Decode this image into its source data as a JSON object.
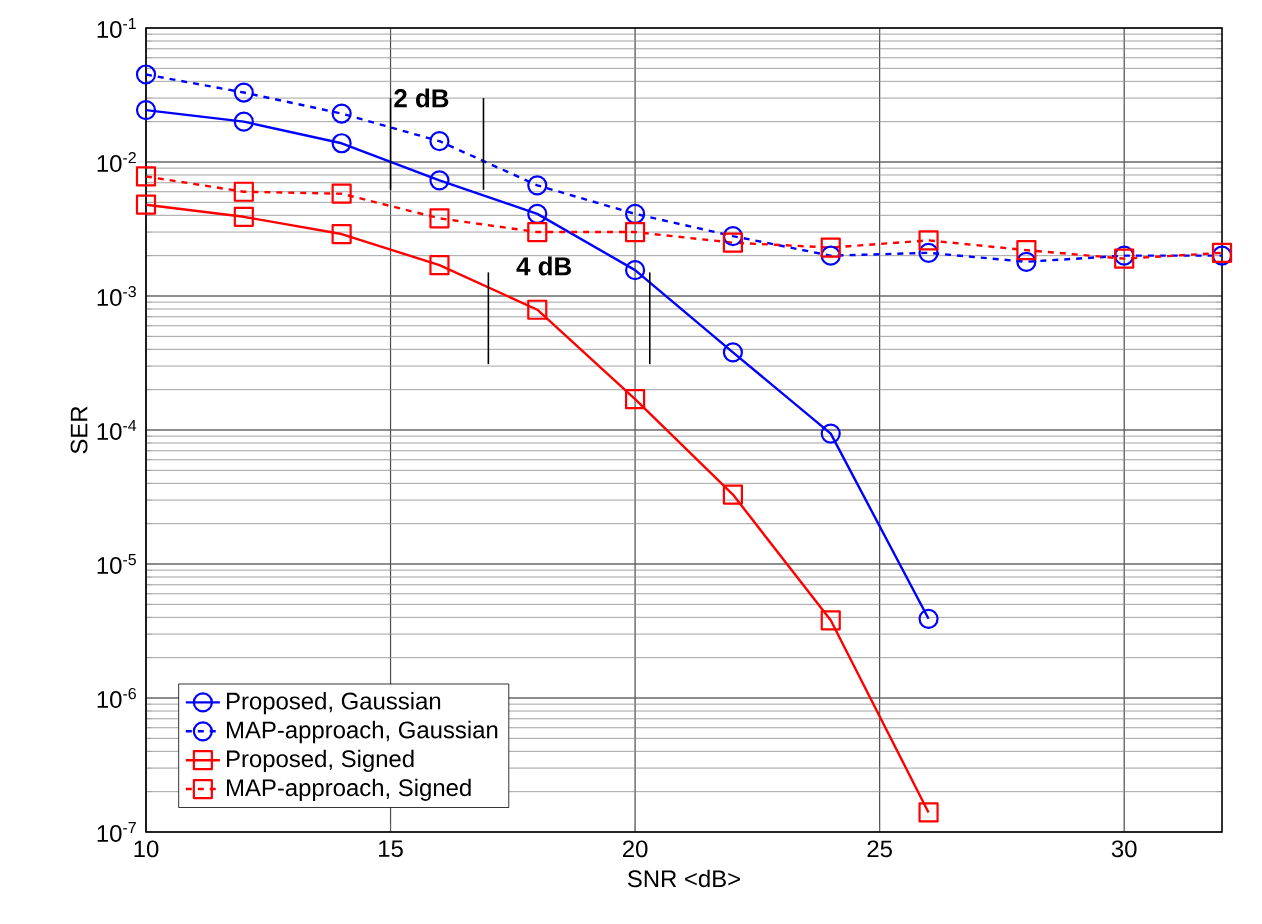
{
  "chart_data": {
    "type": "line",
    "xlabel": "SNR <dB>",
    "ylabel": "SER",
    "log": "y",
    "grid": true,
    "legend": "bottom left",
    "xlim": [
      10,
      32
    ],
    "ylim": [
      1e-07,
      0.1
    ],
    "xticks": [
      10,
      15,
      20,
      25,
      30
    ],
    "yticks": [
      {
        "value": 1e-07,
        "label": "10$^{-7}$"
      },
      {
        "value": 1e-06,
        "label": "10$^{-6}$"
      },
      {
        "value": 1e-05,
        "label": "10$^{-5}$"
      },
      {
        "value": 0.0001,
        "label": "10$^{-4}$"
      },
      {
        "value": 0.001,
        "label": "10$^{-3}$"
      },
      {
        "value": 0.01,
        "label": "10$^{-2}$"
      },
      {
        "value": 0.1,
        "label": "10$^{-1}$"
      }
    ],
    "x": [
      10,
      12,
      14,
      16,
      18,
      20,
      22,
      24,
      26,
      28,
      30,
      32
    ],
    "series": [
      {
        "name": "Proposed, Gaussian",
        "color": "#0000ff",
        "marker": "circle",
        "line_style": "solid",
        "values": [
          0.0244,
          0.02,
          0.0138,
          0.0073,
          0.0041,
          0.00156,
          0.00038,
          9.4e-05,
          3.9e-06,
          null,
          null,
          null
        ]
      },
      {
        "name": "MAP-approach, Gaussian",
        "color": "#0000ff",
        "marker": "circle",
        "line_style": "dashed",
        "values": [
          0.045,
          0.033,
          0.023,
          0.0143,
          0.0067,
          0.0041,
          0.0028,
          0.002,
          0.0021,
          0.0018,
          0.002,
          0.002
        ]
      },
      {
        "name": "Proposed, Signed",
        "color": "#ff0000",
        "marker": "square",
        "line_style": "solid",
        "values": [
          0.0048,
          0.0039,
          0.0029,
          0.0017,
          0.00079,
          0.00017,
          3.3e-05,
          3.8e-06,
          1.4e-07,
          null,
          null,
          null
        ]
      },
      {
        "name": "MAP-approach, Signed",
        "color": "#ff0000",
        "marker": "square",
        "line_style": "dashed",
        "values": [
          0.0078,
          0.006,
          0.0058,
          0.0038,
          0.003,
          0.003,
          0.0025,
          0.0023,
          0.0026,
          0.0022,
          0.0019,
          0.0021
        ]
      },
      {
        "color": "#000000",
        "marker": "none",
        "line_style": "solid",
        "x": [
          15,
          15
        ],
        "values": [
          0.03,
          0.0062
        ]
      },
      {
        "color": "#000000",
        "marker": "none",
        "line_style": "solid",
        "x": [
          16.9,
          16.9
        ],
        "values": [
          0.03,
          0.0062
        ]
      },
      {
        "color": "#000000",
        "marker": "none",
        "line_style": "solid",
        "x": [
          17,
          17
        ],
        "values": [
          0.0015,
          0.00031
        ]
      },
      {
        "color": "#000000",
        "marker": "none",
        "line_style": "solid",
        "x": [
          20.3,
          20.3
        ],
        "values": [
          0.0015,
          0.00031
        ]
      }
    ],
    "annotations": [
      "2 dB",
      "4 dB"
    ]
  }
}
